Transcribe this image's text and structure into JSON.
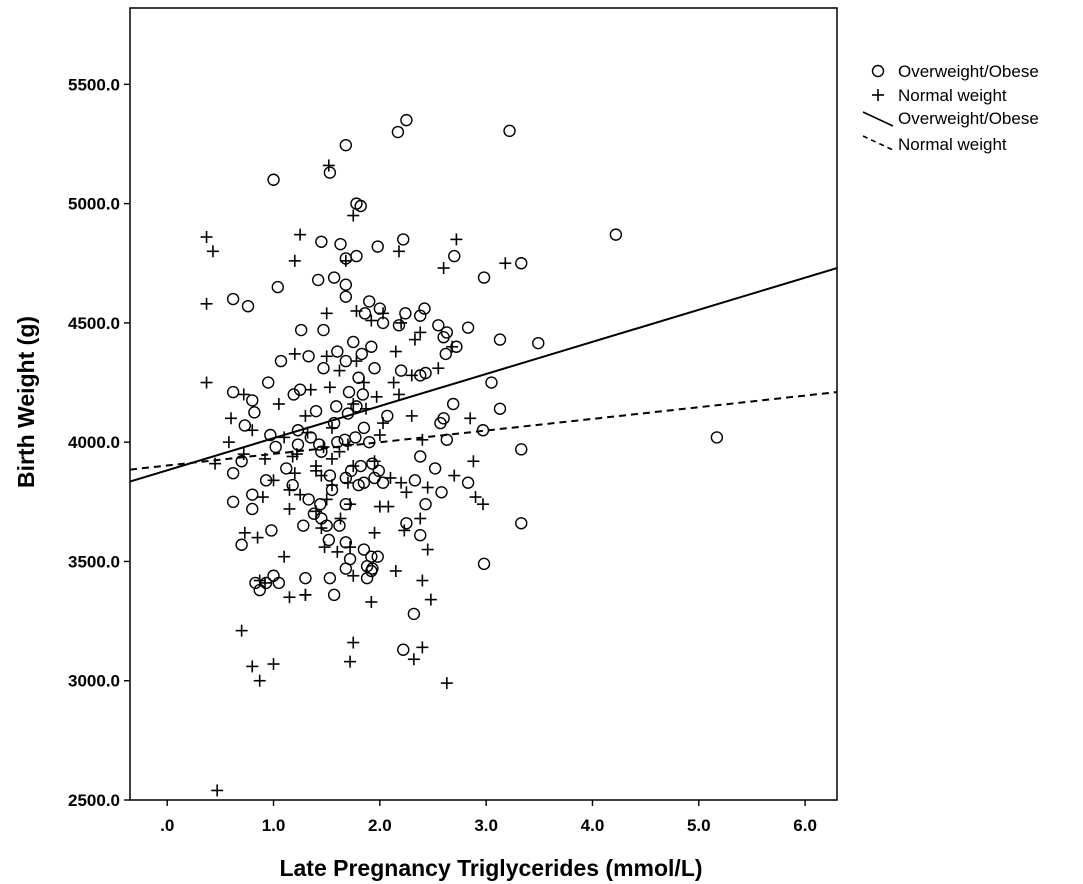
{
  "chart_data": {
    "type": "scatter",
    "xlabel": "Late Pregnancy Triglycerides (mmol/L)",
    "ylabel": "Birth Weight (g)",
    "xlim": [
      -0.35,
      6.3
    ],
    "ylim": [
      2500,
      5820
    ],
    "x_ticks": [
      0,
      1,
      2,
      3,
      4,
      5,
      6
    ],
    "x_tick_labels": [
      ".0",
      "1.0",
      "2.0",
      "3.0",
      "4.0",
      "5.0",
      "6.0"
    ],
    "y_ticks": [
      2500,
      3000,
      3500,
      4000,
      4500,
      5000,
      5500
    ],
    "y_tick_labels": [
      "2500.0",
      "3000.0",
      "3500.0",
      "4000.0",
      "4500.0",
      "5000.0",
      "5500.0"
    ],
    "grid": false,
    "legend_position": "right",
    "series": [
      {
        "name": "Overweight/Obese",
        "marker": "circle",
        "points": [
          [
            2.25,
            5350
          ],
          [
            2.17,
            5300
          ],
          [
            3.22,
            5305
          ],
          [
            1.68,
            5245
          ],
          [
            1.0,
            5100
          ],
          [
            1.53,
            5130
          ],
          [
            1.78,
            5000
          ],
          [
            1.82,
            4990
          ],
          [
            2.22,
            4850
          ],
          [
            1.45,
            4840
          ],
          [
            1.63,
            4830
          ],
          [
            1.98,
            4820
          ],
          [
            1.78,
            4780
          ],
          [
            2.7,
            4780
          ],
          [
            3.33,
            4750
          ],
          [
            1.68,
            4770
          ],
          [
            4.22,
            4870
          ],
          [
            1.42,
            4680
          ],
          [
            1.57,
            4690
          ],
          [
            2.98,
            4690
          ],
          [
            1.04,
            4650
          ],
          [
            1.68,
            4660
          ],
          [
            0.62,
            4600
          ],
          [
            0.76,
            4570
          ],
          [
            1.68,
            4610
          ],
          [
            1.9,
            4590
          ],
          [
            2.0,
            4560
          ],
          [
            2.42,
            4560
          ],
          [
            1.86,
            4540
          ],
          [
            2.24,
            4540
          ],
          [
            2.38,
            4530
          ],
          [
            2.03,
            4500
          ],
          [
            2.18,
            4490
          ],
          [
            2.55,
            4490
          ],
          [
            1.26,
            4470
          ],
          [
            1.47,
            4470
          ],
          [
            2.63,
            4460
          ],
          [
            2.83,
            4480
          ],
          [
            2.6,
            4440
          ],
          [
            3.13,
            4430
          ],
          [
            3.49,
            4415
          ],
          [
            1.75,
            4420
          ],
          [
            1.92,
            4400
          ],
          [
            2.72,
            4400
          ],
          [
            1.07,
            4340
          ],
          [
            1.6,
            4380
          ],
          [
            1.83,
            4370
          ],
          [
            2.62,
            4370
          ],
          [
            1.33,
            4360
          ],
          [
            1.68,
            4340
          ],
          [
            1.47,
            4310
          ],
          [
            1.95,
            4310
          ],
          [
            2.2,
            4300
          ],
          [
            2.43,
            4290
          ],
          [
            2.38,
            4280
          ],
          [
            1.8,
            4270
          ],
          [
            3.05,
            4250
          ],
          [
            0.95,
            4250
          ],
          [
            1.25,
            4220
          ],
          [
            1.71,
            4210
          ],
          [
            1.84,
            4200
          ],
          [
            0.62,
            4210
          ],
          [
            1.19,
            4200
          ],
          [
            0.8,
            4175
          ],
          [
            1.59,
            4150
          ],
          [
            1.78,
            4150
          ],
          [
            2.69,
            4160
          ],
          [
            3.13,
            4140
          ],
          [
            0.82,
            4125
          ],
          [
            1.4,
            4130
          ],
          [
            1.7,
            4120
          ],
          [
            2.07,
            4110
          ],
          [
            2.6,
            4100
          ],
          [
            2.57,
            4080
          ],
          [
            0.73,
            4070
          ],
          [
            1.57,
            4080
          ],
          [
            1.85,
            4060
          ],
          [
            1.23,
            4050
          ],
          [
            2.97,
            4050
          ],
          [
            0.97,
            4030
          ],
          [
            1.35,
            4020
          ],
          [
            1.67,
            4010
          ],
          [
            1.77,
            4020
          ],
          [
            2.63,
            4010
          ],
          [
            1.9,
            4000
          ],
          [
            1.23,
            3990
          ],
          [
            1.6,
            4000
          ],
          [
            1.43,
            3990
          ],
          [
            1.02,
            3980
          ],
          [
            3.33,
            3970
          ],
          [
            1.45,
            3960
          ],
          [
            2.38,
            3940
          ],
          [
            1.93,
            3910
          ],
          [
            0.7,
            3920
          ],
          [
            1.82,
            3900
          ],
          [
            1.12,
            3890
          ],
          [
            1.73,
            3880
          ],
          [
            2.52,
            3890
          ],
          [
            1.53,
            3860
          ],
          [
            1.99,
            3880
          ],
          [
            0.62,
            3870
          ],
          [
            1.95,
            3850
          ],
          [
            2.33,
            3840
          ],
          [
            0.93,
            3840
          ],
          [
            1.68,
            3850
          ],
          [
            1.85,
            3830
          ],
          [
            2.83,
            3830
          ],
          [
            1.18,
            3820
          ],
          [
            1.8,
            3820
          ],
          [
            2.03,
            3830
          ],
          [
            2.58,
            3790
          ],
          [
            0.8,
            3780
          ],
          [
            1.55,
            3800
          ],
          [
            1.33,
            3760
          ],
          [
            1.44,
            3740
          ],
          [
            0.62,
            3750
          ],
          [
            0.8,
            3720
          ],
          [
            1.68,
            3740
          ],
          [
            1.38,
            3700
          ],
          [
            1.45,
            3680
          ],
          [
            2.43,
            3740
          ],
          [
            1.5,
            3650
          ],
          [
            1.28,
            3650
          ],
          [
            1.62,
            3650
          ],
          [
            2.25,
            3660
          ],
          [
            3.33,
            3660
          ],
          [
            0.98,
            3630
          ],
          [
            2.38,
            3610
          ],
          [
            0.7,
            3570
          ],
          [
            1.52,
            3590
          ],
          [
            1.68,
            3580
          ],
          [
            1.85,
            3550
          ],
          [
            1.92,
            3520
          ],
          [
            1.98,
            3520
          ],
          [
            1.72,
            3510
          ],
          [
            2.98,
            3490
          ],
          [
            1.88,
            3480
          ],
          [
            1.68,
            3470
          ],
          [
            1.92,
            3460
          ],
          [
            1.93,
            3470
          ],
          [
            1.0,
            3440
          ],
          [
            1.3,
            3430
          ],
          [
            1.53,
            3430
          ],
          [
            1.88,
            3430
          ],
          [
            0.83,
            3410
          ],
          [
            0.93,
            3410
          ],
          [
            1.05,
            3410
          ],
          [
            0.87,
            3380
          ],
          [
            1.57,
            3360
          ],
          [
            2.32,
            3280
          ],
          [
            2.22,
            3130
          ],
          [
            5.17,
            4020
          ]
        ]
      },
      {
        "name": "Normal weight",
        "marker": "plus",
        "points": [
          [
            1.52,
            5160
          ],
          [
            1.75,
            4950
          ],
          [
            0.37,
            4860
          ],
          [
            1.25,
            4870
          ],
          [
            2.72,
            4850
          ],
          [
            0.43,
            4800
          ],
          [
            2.18,
            4800
          ],
          [
            1.68,
            4760
          ],
          [
            1.2,
            4760
          ],
          [
            2.6,
            4730
          ],
          [
            3.18,
            4750
          ],
          [
            0.37,
            4580
          ],
          [
            1.78,
            4550
          ],
          [
            1.5,
            4540
          ],
          [
            2.03,
            4540
          ],
          [
            1.92,
            4510
          ],
          [
            2.2,
            4500
          ],
          [
            2.38,
            4460
          ],
          [
            2.68,
            4400
          ],
          [
            1.2,
            4370
          ],
          [
            1.5,
            4360
          ],
          [
            2.15,
            4380
          ],
          [
            2.33,
            4430
          ],
          [
            1.78,
            4340
          ],
          [
            2.55,
            4310
          ],
          [
            1.62,
            4300
          ],
          [
            2.3,
            4280
          ],
          [
            0.37,
            4250
          ],
          [
            1.53,
            4230
          ],
          [
            1.85,
            4250
          ],
          [
            2.13,
            4250
          ],
          [
            1.35,
            4220
          ],
          [
            0.72,
            4200
          ],
          [
            2.18,
            4200
          ],
          [
            1.97,
            4190
          ],
          [
            1.75,
            4160
          ],
          [
            1.05,
            4160
          ],
          [
            1.87,
            4140
          ],
          [
            1.3,
            4110
          ],
          [
            2.3,
            4110
          ],
          [
            2.85,
            4100
          ],
          [
            0.6,
            4100
          ],
          [
            2.03,
            4080
          ],
          [
            1.55,
            4060
          ],
          [
            0.8,
            4050
          ],
          [
            1.32,
            4040
          ],
          [
            2.0,
            4030
          ],
          [
            1.1,
            4020
          ],
          [
            0.58,
            4000
          ],
          [
            1.7,
            3990
          ],
          [
            2.4,
            4010
          ],
          [
            1.47,
            3980
          ],
          [
            1.62,
            3960
          ],
          [
            0.72,
            3950
          ],
          [
            1.18,
            3940
          ],
          [
            1.22,
            3950
          ],
          [
            0.92,
            3930
          ],
          [
            1.55,
            3930
          ],
          [
            1.95,
            3920
          ],
          [
            2.88,
            3920
          ],
          [
            0.45,
            3910
          ],
          [
            1.4,
            3900
          ],
          [
            1.75,
            3900
          ],
          [
            1.4,
            3880
          ],
          [
            1.2,
            3870
          ],
          [
            1.45,
            3860
          ],
          [
            2.7,
            3860
          ],
          [
            2.1,
            3850
          ],
          [
            1.0,
            3840
          ],
          [
            1.7,
            3830
          ],
          [
            2.2,
            3830
          ],
          [
            1.55,
            3820
          ],
          [
            2.45,
            3810
          ],
          [
            1.15,
            3800
          ],
          [
            2.25,
            3790
          ],
          [
            1.25,
            3780
          ],
          [
            0.9,
            3770
          ],
          [
            2.9,
            3770
          ],
          [
            1.5,
            3760
          ],
          [
            2.97,
            3740
          ],
          [
            2.0,
            3730
          ],
          [
            2.08,
            3730
          ],
          [
            1.15,
            3720
          ],
          [
            1.72,
            3740
          ],
          [
            1.4,
            3710
          ],
          [
            1.63,
            3680
          ],
          [
            2.38,
            3680
          ],
          [
            1.45,
            3640
          ],
          [
            2.23,
            3630
          ],
          [
            0.73,
            3620
          ],
          [
            1.95,
            3620
          ],
          [
            0.85,
            3600
          ],
          [
            1.72,
            3560
          ],
          [
            1.48,
            3560
          ],
          [
            2.45,
            3550
          ],
          [
            1.6,
            3540
          ],
          [
            1.1,
            3520
          ],
          [
            2.15,
            3460
          ],
          [
            1.75,
            3440
          ],
          [
            2.4,
            3420
          ],
          [
            0.92,
            3410
          ],
          [
            0.87,
            3420
          ],
          [
            1.3,
            3360
          ],
          [
            1.15,
            3350
          ],
          [
            1.3,
            3360
          ],
          [
            1.92,
            3330
          ],
          [
            2.48,
            3340
          ],
          [
            0.7,
            3210
          ],
          [
            1.75,
            3160
          ],
          [
            2.4,
            3140
          ],
          [
            2.32,
            3090
          ],
          [
            0.8,
            3060
          ],
          [
            1.0,
            3070
          ],
          [
            1.72,
            3080
          ],
          [
            0.87,
            3000
          ],
          [
            2.63,
            2990
          ],
          [
            0.47,
            2540
          ]
        ]
      }
    ],
    "fit_lines": [
      {
        "name": "Overweight/Obese",
        "style": "solid",
        "x": [
          -0.35,
          6.3
        ],
        "y": [
          3835,
          4730
        ]
      },
      {
        "name": "Normal weight",
        "style": "dashed",
        "x": [
          -0.35,
          6.3
        ],
        "y": [
          3885,
          4210
        ]
      }
    ],
    "legend": [
      {
        "label": "Overweight/Obese",
        "symbol": "circle"
      },
      {
        "label": "Normal weight",
        "symbol": "plus"
      },
      {
        "label": "Overweight/Obese",
        "symbol": "solid-line"
      },
      {
        "label": "Normal weight",
        "symbol": "dashed-line"
      }
    ]
  }
}
